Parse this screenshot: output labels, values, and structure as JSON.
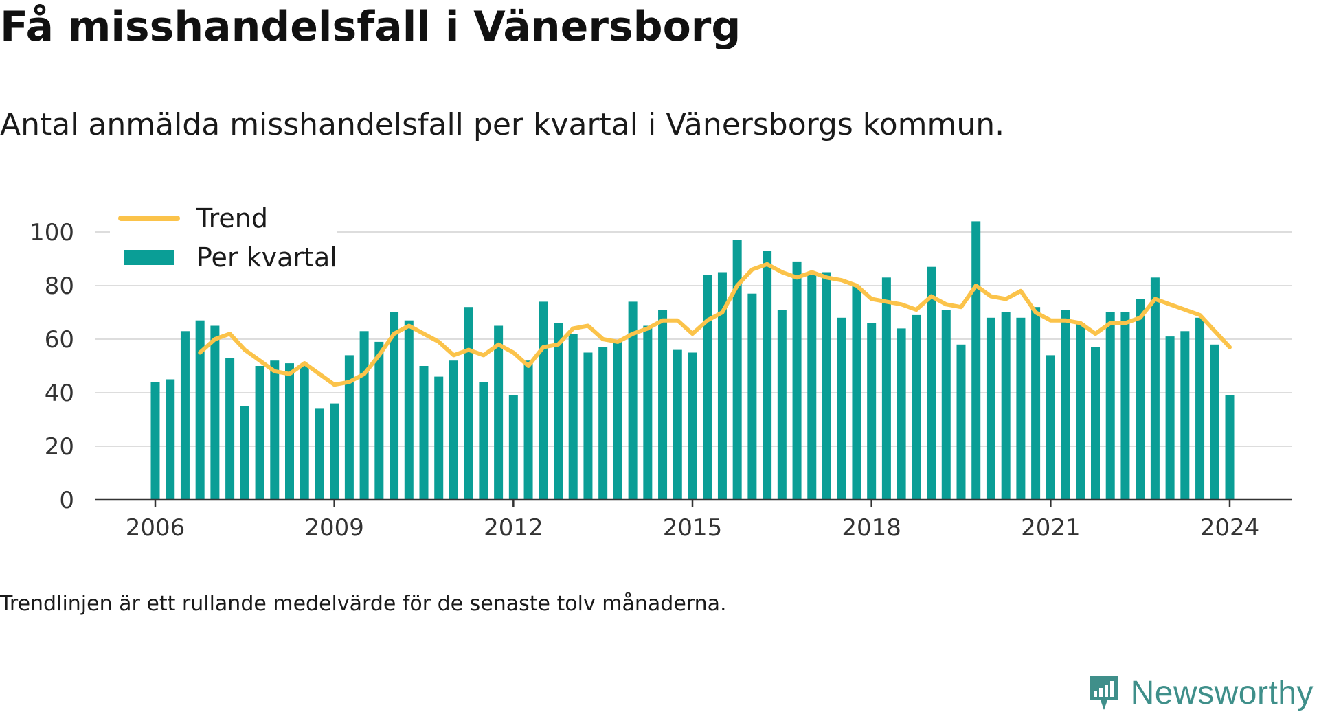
{
  "title": "Få misshandelsfall i Vänersborg",
  "subtitle": "Antal anmälda misshandelsfall per kvartal i Vänersborgs kommun.",
  "footnote": "Trendlinjen är ett rullande medelvärde för de senaste tolv månaderna.",
  "brand": {
    "name": "Newsworthy",
    "icon": "newsworthy-logo-icon",
    "color": "#3f8f8a"
  },
  "colors": {
    "bars": "#0a9e96",
    "trend": "#fbc34a",
    "grid": "#dddddd",
    "axis": "#333333"
  },
  "chart_data": {
    "type": "bar",
    "title": "Få misshandelsfall i Vänersborg",
    "subtitle": "Antal anmälda misshandelsfall per kvartal i Vänersborgs kommun.",
    "xlabel": "",
    "ylabel": "",
    "ylim": [
      0,
      100
    ],
    "yticks": [
      0,
      20,
      40,
      60,
      80,
      100
    ],
    "xtick_labels": [
      "2006",
      "2009",
      "2012",
      "2015",
      "2018",
      "2021",
      "2024"
    ],
    "grid": true,
    "legend_position": "top-left",
    "categories": [
      "2006 Q1",
      "2006 Q2",
      "2006 Q3",
      "2006 Q4",
      "2007 Q1",
      "2007 Q2",
      "2007 Q3",
      "2007 Q4",
      "2008 Q1",
      "2008 Q2",
      "2008 Q3",
      "2008 Q4",
      "2009 Q1",
      "2009 Q2",
      "2009 Q3",
      "2009 Q4",
      "2010 Q1",
      "2010 Q2",
      "2010 Q3",
      "2010 Q4",
      "2011 Q1",
      "2011 Q2",
      "2011 Q3",
      "2011 Q4",
      "2012 Q1",
      "2012 Q2",
      "2012 Q3",
      "2012 Q4",
      "2013 Q1",
      "2013 Q2",
      "2013 Q3",
      "2013 Q4",
      "2014 Q1",
      "2014 Q2",
      "2014 Q3",
      "2014 Q4",
      "2015 Q1",
      "2015 Q2",
      "2015 Q3",
      "2015 Q4",
      "2016 Q1",
      "2016 Q2",
      "2016 Q3",
      "2016 Q4",
      "2017 Q1",
      "2017 Q2",
      "2017 Q3",
      "2017 Q4",
      "2018 Q1",
      "2018 Q2",
      "2018 Q3",
      "2018 Q4",
      "2019 Q1",
      "2019 Q2",
      "2019 Q3",
      "2019 Q4",
      "2020 Q1",
      "2020 Q2",
      "2020 Q3",
      "2020 Q4",
      "2021 Q1",
      "2021 Q2",
      "2021 Q3",
      "2021 Q4",
      "2022 Q1",
      "2022 Q2",
      "2022 Q3",
      "2022 Q4",
      "2023 Q1",
      "2023 Q2",
      "2023 Q3",
      "2023 Q4",
      "2024 Q1"
    ],
    "series": [
      {
        "name": "Per kvartal",
        "type": "bar",
        "color": "#0a9e96",
        "values": [
          44,
          45,
          63,
          67,
          65,
          53,
          35,
          50,
          52,
          51,
          50,
          34,
          36,
          54,
          63,
          59,
          70,
          67,
          50,
          46,
          52,
          72,
          44,
          65,
          39,
          52,
          74,
          66,
          62,
          55,
          57,
          59,
          74,
          65,
          71,
          56,
          55,
          84,
          85,
          97,
          77,
          93,
          71,
          89,
          84,
          85,
          68,
          80,
          66,
          83,
          64,
          69,
          87,
          71,
          58,
          104,
          68,
          70,
          68,
          72,
          54,
          71,
          66,
          57,
          70,
          70,
          75,
          83,
          61,
          63,
          68,
          58,
          39
        ]
      },
      {
        "name": "Trend",
        "type": "line",
        "color": "#fbc34a",
        "values": [
          null,
          null,
          null,
          55,
          60,
          62,
          56,
          52,
          48,
          47,
          51,
          47,
          43,
          44,
          47,
          54,
          62,
          65,
          62,
          59,
          54,
          56,
          54,
          58,
          55,
          50,
          57,
          58,
          64,
          65,
          60,
          59,
          62,
          64,
          67,
          67,
          62,
          67,
          70,
          80,
          86,
          88,
          85,
          83,
          85,
          83,
          82,
          80,
          75,
          74,
          73,
          71,
          76,
          73,
          72,
          80,
          76,
          75,
          78,
          70,
          67,
          67,
          66,
          62,
          66,
          66,
          68,
          75,
          73,
          71,
          69,
          63,
          57
        ]
      }
    ]
  }
}
